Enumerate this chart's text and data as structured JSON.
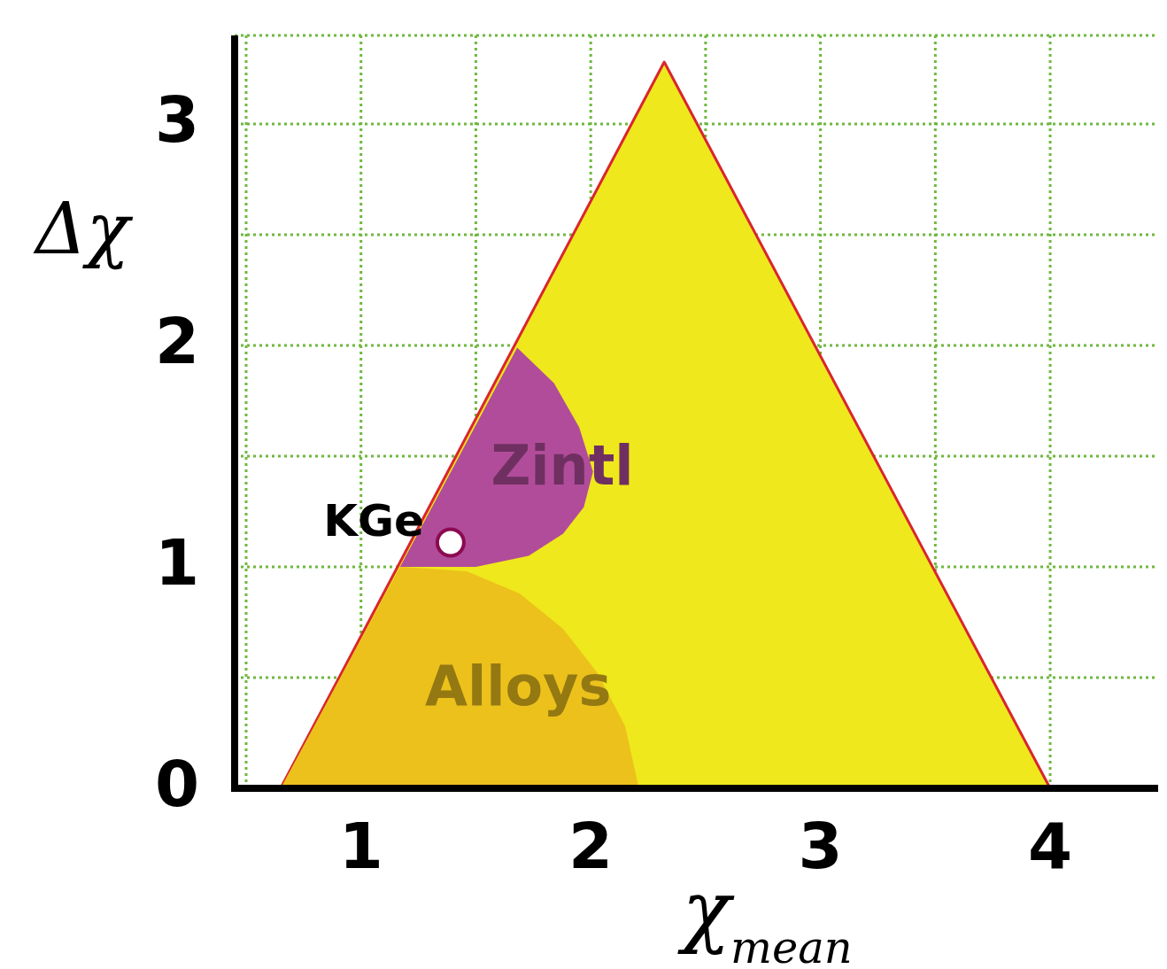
{
  "chart_data": {
    "type": "area",
    "xlabel": "χ$_{mean}$",
    "ylabel": "Δχ",
    "xlim": [
      0.45,
      4.47
    ],
    "ylim": [
      0,
      3.4
    ],
    "xticks": [
      {
        "value": 0.5,
        "label": null
      },
      1,
      {
        "value": 1.5,
        "label": null
      },
      2,
      {
        "value": 2.5,
        "label": null
      },
      3,
      {
        "value": 3.5,
        "label": null
      },
      4
    ],
    "yticks": [
      0,
      {
        "value": 0.5,
        "label": null
      },
      1,
      {
        "value": 1.5,
        "label": null
      },
      2,
      {
        "value": 2.5,
        "label": null
      },
      3
    ],
    "grid": true,
    "series": [
      {
        "color": "#efe81c",
        "x": [
          0.65,
          2.32,
          4.0
        ],
        "values": [
          0,
          3.28,
          0
        ]
      },
      {
        "name": "Zintl",
        "color": "#b14c9a",
        "x": [
          1.68,
          1.84,
          1.95,
          2.01,
          1.97,
          1.88,
          1.73,
          1.5,
          1.17
        ],
        "values": [
          1.99,
          1.83,
          1.63,
          1.43,
          1.27,
          1.15,
          1.05,
          1.0,
          1.0
        ]
      },
      {
        "name": "Alloys",
        "color": "#ecc11c",
        "x": [
          1.17,
          0.65,
          2.21,
          2.15,
          2.03,
          1.88,
          1.69,
          1.46
        ],
        "values": [
          1.0,
          0,
          0,
          0.28,
          0.52,
          0.72,
          0.88,
          0.98
        ]
      },
      {
        "type": "scatter",
        "name": "KGe",
        "color": "#ffffff",
        "marker": "circle",
        "x": [
          1.39
        ],
        "values": [
          1.11
        ]
      }
    ]
  }
}
